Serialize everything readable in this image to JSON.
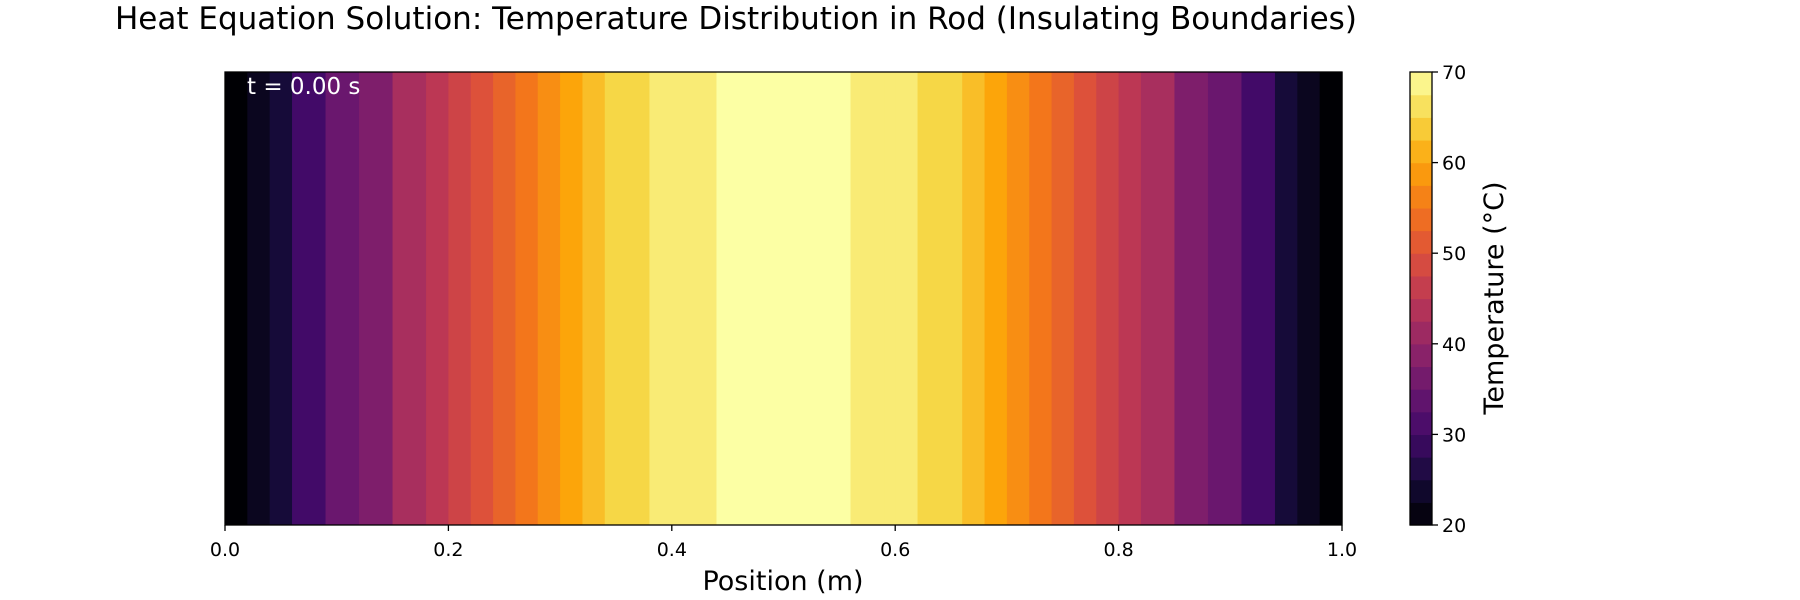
{
  "chart_data": {
    "type": "heatmap",
    "title": "Heat Equation Solution: Temperature Distribution in Rod (Insulating Boundaries)",
    "xlabel": "Position (m)",
    "ylabel": "",
    "annotation": "t = 0.00 s",
    "xlim": [
      0.0,
      1.0
    ],
    "x_ticks": [
      0.0,
      0.2,
      0.4,
      0.6,
      0.8,
      1.0
    ],
    "x_tick_labels": [
      "0.0",
      "0.2",
      "0.4",
      "0.6",
      "0.8",
      "1.0"
    ],
    "grid": false,
    "colormap": "inferno",
    "colorbar": {
      "label": "Temperature (°C)",
      "range": [
        20,
        70
      ],
      "levels": 20,
      "ticks": [
        20,
        30,
        40,
        50,
        60,
        70
      ],
      "tick_labels": [
        "20",
        "30",
        "40",
        "50",
        "60",
        "70"
      ]
    },
    "position_edges": [
      0.0,
      0.02,
      0.04,
      0.06,
      0.09,
      0.12,
      0.15,
      0.18,
      0.2,
      0.22,
      0.24,
      0.26,
      0.28,
      0.3,
      0.32,
      0.34,
      0.36,
      0.38,
      0.4,
      0.41,
      0.44,
      0.47,
      0.5,
      0.53,
      0.56,
      0.59,
      0.6,
      0.62,
      0.64,
      0.66,
      0.68,
      0.7,
      0.72,
      0.74,
      0.76,
      0.78,
      0.8,
      0.82,
      0.85,
      0.88,
      0.91,
      0.94,
      0.96,
      0.98,
      1.0
    ],
    "temperature_values": [
      20.0,
      22.5,
      25.0,
      30.0,
      35.0,
      37.5,
      42.5,
      45.0,
      47.5,
      50.0,
      52.5,
      55.0,
      57.5,
      60.0,
      62.5,
      65.0,
      65.0,
      67.5,
      67.5,
      67.5,
      70.0,
      70.0,
      70.0,
      70.0,
      67.5,
      67.5,
      67.5,
      65.0,
      65.0,
      62.5,
      60.0,
      57.5,
      55.0,
      52.5,
      50.0,
      47.5,
      45.0,
      42.5,
      37.5,
      35.0,
      30.0,
      25.0,
      22.5,
      20.0
    ]
  }
}
